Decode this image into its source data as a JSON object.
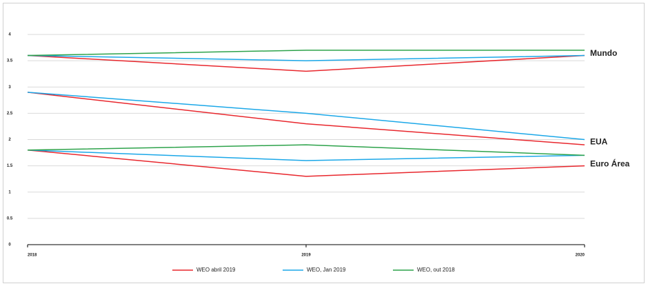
{
  "chart_data": {
    "type": "line",
    "x": [
      2018,
      2019,
      2020
    ],
    "ylim": [
      0,
      4
    ],
    "yticks": [
      0,
      0.5,
      1,
      1.5,
      2,
      2.5,
      3,
      3.5,
      4
    ],
    "grid": true,
    "line_labels": [
      "Mundo",
      "EUA",
      "Euro Área"
    ],
    "series": [
      {
        "name": "WEO abril 2019",
        "color": "#e8262c",
        "lines": [
          [
            3.6,
            3.3,
            3.6
          ],
          [
            2.9,
            2.3,
            1.9
          ],
          [
            1.8,
            1.3,
            1.5
          ]
        ]
      },
      {
        "name": "WEO, Jan 2019",
        "color": "#1aa7e8",
        "lines": [
          [
            3.6,
            3.5,
            3.6
          ],
          [
            2.9,
            2.5,
            2.0
          ],
          [
            1.8,
            1.6,
            1.7
          ]
        ]
      },
      {
        "name": "WEO, out 2018",
        "color": "#2ca24a",
        "lines": [
          [
            3.6,
            3.7,
            3.7
          ],
          [
            null,
            null,
            null
          ],
          [
            1.8,
            1.9,
            1.7
          ]
        ]
      }
    ],
    "legend": "bottom"
  }
}
